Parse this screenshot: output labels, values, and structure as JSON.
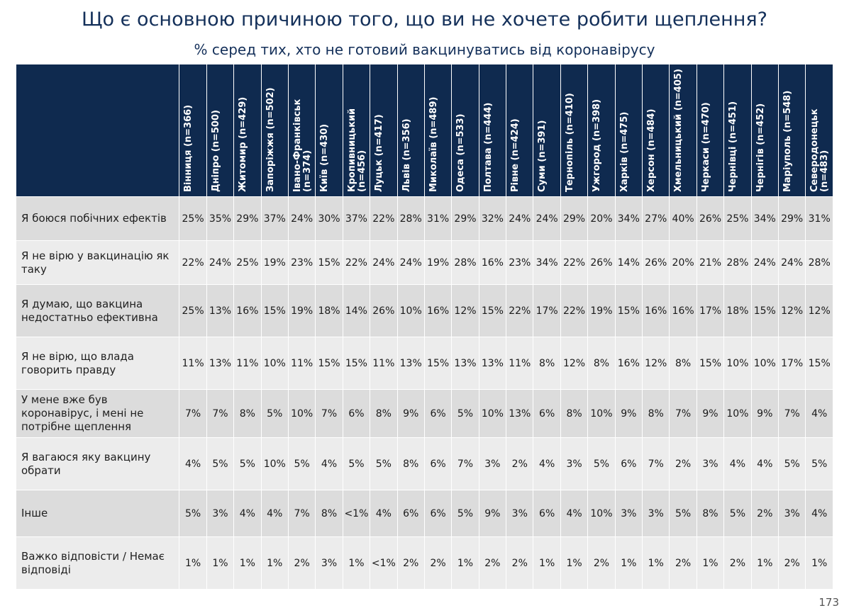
{
  "title": "Що є основною причиною того, що ви не хочете робити щеплення?",
  "subtitle": "% серед тих, хто не готовий вакцинуватись від коронавірусу",
  "page_number": "173",
  "chart_data": {
    "type": "table",
    "columns": [
      "Вінниця (n=366)",
      "Дніпро (n=500)",
      "Житомир (n=429)",
      "Запоріжжя (n=502)",
      "Івано-Франківськ (n=374)",
      "Київ (n=430)",
      "Кропивницький (n=456)",
      "Луцьк (n=417)",
      "Львів (n=356)",
      "Миколаїв (n=489)",
      "Одеса (n=533)",
      "Полтава (n=444)",
      "Рівне (n=424)",
      "Суми (n=391)",
      "Тернопіль (n=410)",
      "Ужгород (n=398)",
      "Харків (n=475)",
      "Херсон (n=484)",
      "Хмельницький (n=405)",
      "Черкаси (n=470)",
      "Чернівці (n=451)",
      "Чернігів (n=452)",
      "Маріуполь (n=548)",
      "Северодонецьк (n=483)"
    ],
    "rows": [
      {
        "label": "Я боюся побічних ефектів",
        "values": [
          "25%",
          "35%",
          "29%",
          "37%",
          "24%",
          "30%",
          "37%",
          "22%",
          "28%",
          "31%",
          "29%",
          "32%",
          "24%",
          "24%",
          "29%",
          "20%",
          "34%",
          "27%",
          "40%",
          "26%",
          "25%",
          "34%",
          "29%",
          "31%"
        ]
      },
      {
        "label": "Я не вірю у вакцинацію як таку",
        "values": [
          "22%",
          "24%",
          "25%",
          "19%",
          "23%",
          "15%",
          "22%",
          "24%",
          "24%",
          "19%",
          "28%",
          "16%",
          "23%",
          "34%",
          "22%",
          "26%",
          "14%",
          "26%",
          "20%",
          "21%",
          "28%",
          "24%",
          "24%",
          "28%"
        ]
      },
      {
        "label": "Я думаю, що вакцина недостатньо ефективна",
        "values": [
          "25%",
          "13%",
          "16%",
          "15%",
          "19%",
          "18%",
          "14%",
          "26%",
          "10%",
          "16%",
          "12%",
          "15%",
          "22%",
          "17%",
          "22%",
          "19%",
          "15%",
          "16%",
          "16%",
          "17%",
          "18%",
          "15%",
          "12%",
          "12%"
        ]
      },
      {
        "label": "Я не вірю, що влада говорить правду",
        "values": [
          "11%",
          "13%",
          "11%",
          "10%",
          "11%",
          "15%",
          "15%",
          "11%",
          "13%",
          "15%",
          "13%",
          "13%",
          "11%",
          "8%",
          "12%",
          "8%",
          "16%",
          "12%",
          "8%",
          "15%",
          "10%",
          "10%",
          "17%",
          "15%"
        ]
      },
      {
        "label": "У мене вже був коронавірус, і мені не потрібне щеплення",
        "values": [
          "7%",
          "7%",
          "8%",
          "5%",
          "10%",
          "7%",
          "6%",
          "8%",
          "9%",
          "6%",
          "5%",
          "10%",
          "13%",
          "6%",
          "8%",
          "10%",
          "9%",
          "8%",
          "7%",
          "9%",
          "10%",
          "9%",
          "7%",
          "4%"
        ]
      },
      {
        "label": "Я вагаюся яку вакцину обрати",
        "values": [
          "4%",
          "5%",
          "5%",
          "10%",
          "5%",
          "4%",
          "5%",
          "5%",
          "8%",
          "6%",
          "7%",
          "3%",
          "2%",
          "4%",
          "3%",
          "5%",
          "6%",
          "7%",
          "2%",
          "3%",
          "4%",
          "4%",
          "5%",
          "5%"
        ]
      },
      {
        "label": "Інше",
        "values": [
          "5%",
          "3%",
          "4%",
          "4%",
          "7%",
          "8%",
          "<1%",
          "4%",
          "6%",
          "6%",
          "5%",
          "9%",
          "3%",
          "6%",
          "4%",
          "10%",
          "3%",
          "3%",
          "5%",
          "8%",
          "5%",
          "2%",
          "3%",
          "4%"
        ]
      },
      {
        "label": "Важко відповісти / Немає відповіді",
        "values": [
          "1%",
          "1%",
          "1%",
          "1%",
          "2%",
          "3%",
          "1%",
          "<1%",
          "2%",
          "2%",
          "1%",
          "2%",
          "2%",
          "1%",
          "1%",
          "2%",
          "1%",
          "1%",
          "2%",
          "1%",
          "2%",
          "1%",
          "2%",
          "1%"
        ]
      }
    ]
  },
  "colors": {
    "header_bg": "#0f2a4f",
    "title": "#14305a",
    "row_dark": "#dcdcdc",
    "row_light": "#ececec"
  }
}
